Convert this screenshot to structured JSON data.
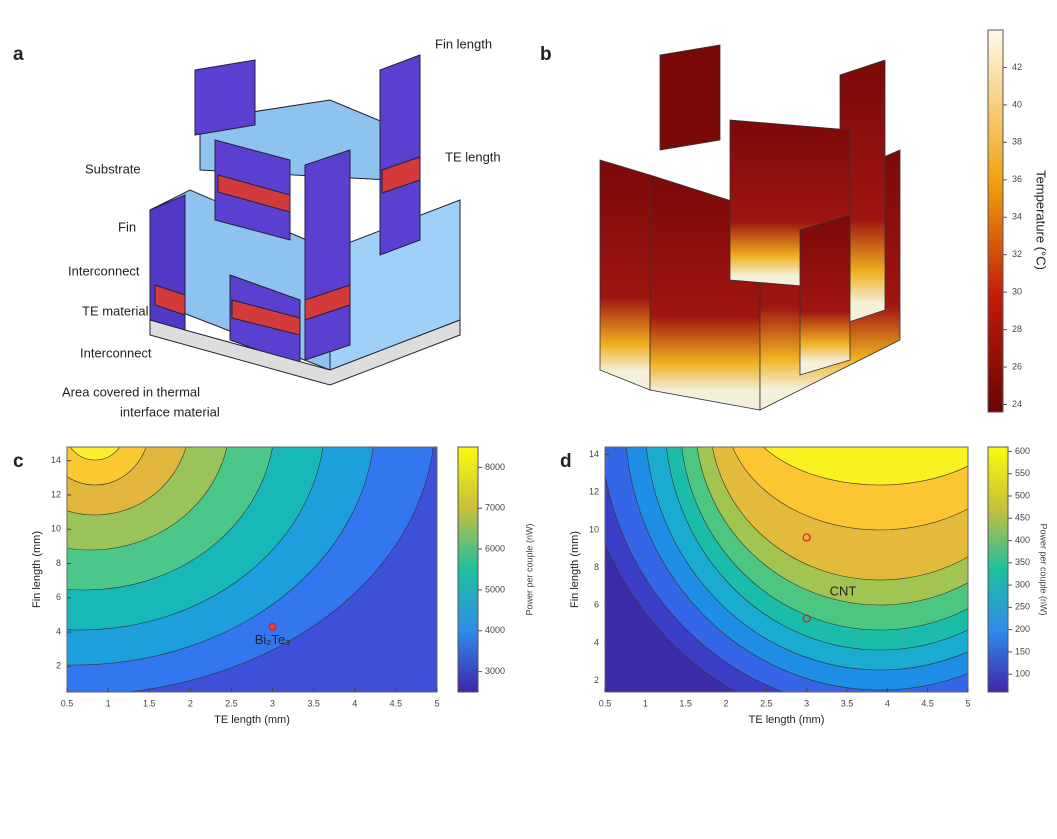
{
  "panel_a": {
    "label": "a",
    "annotations": [
      "Fin length",
      "TE length",
      "Substrate",
      "Fin",
      "Interconnect",
      "TE material",
      "Interconnect",
      "Area covered in thermal",
      "interface material"
    ]
  },
  "panel_b": {
    "label": "b",
    "colorbar": {
      "label": "Temperature (°C)",
      "lim": [
        23.6,
        44
      ],
      "ticks": [
        24,
        26,
        28,
        30,
        32,
        34,
        36,
        38,
        40,
        42
      ]
    }
  },
  "chart_data": [
    {
      "type": "contour",
      "label": "c",
      "xlabel": "TE length (mm)",
      "ylabel": "Fin length (mm)",
      "xlim": [
        0.5,
        5
      ],
      "xticks": [
        0.5,
        1,
        1.5,
        2,
        2.5,
        3,
        3.5,
        4,
        4.5,
        5
      ],
      "ylim": [
        0.5,
        14.8
      ],
      "yticks": [
        2,
        4,
        6,
        8,
        10,
        12,
        14
      ],
      "colorbar_label": "Power per couple (nW)",
      "colorbar_lim": [
        2500,
        8500
      ],
      "colorbar_ticks": [
        3000,
        4000,
        5000,
        6000,
        7000,
        8000
      ],
      "points": [
        {
          "x": 3,
          "y": 4.3
        }
      ],
      "annotations": [
        {
          "text": "Bi₂Te₃",
          "x": 3,
          "y": 3.5
        }
      ]
    },
    {
      "type": "contour",
      "label": "d",
      "xlabel": "TE length (mm)",
      "ylabel": "Fin length (mm)",
      "xlim": [
        0.5,
        5
      ],
      "xticks": [
        0.5,
        1,
        1.5,
        2,
        2.5,
        3,
        3.5,
        4,
        4.5,
        5
      ],
      "ylim": [
        1.4,
        14.4
      ],
      "yticks": [
        2,
        4,
        6,
        8,
        10,
        12,
        14
      ],
      "colorbar_label": "Power per couple (nW)",
      "colorbar_lim": [
        60,
        610
      ],
      "colorbar_ticks": [
        100,
        150,
        200,
        250,
        300,
        350,
        400,
        450,
        500,
        550,
        600
      ],
      "points": [
        {
          "x": 3,
          "y": 9.6
        },
        {
          "x": 3,
          "y": 5.3
        }
      ],
      "annotations": [
        {
          "text": "CNT",
          "x": 3.45,
          "y": 6.7
        }
      ]
    }
  ]
}
